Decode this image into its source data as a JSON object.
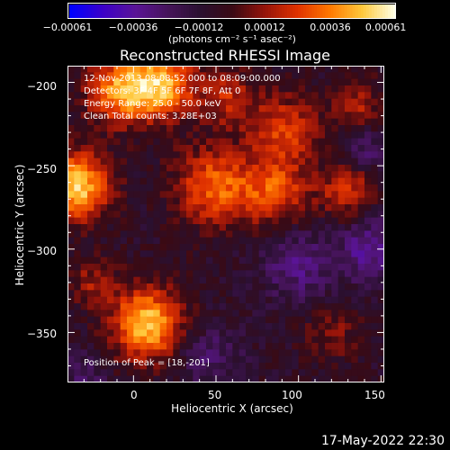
{
  "chart_data": {
    "type": "heatmap",
    "title": "Reconstructed RHESSI Image",
    "xlabel": "Heliocentric X (arcsec)",
    "ylabel": "Heliocentric Y (arcsec)",
    "xlim": [
      -40,
      152
    ],
    "ylim": [
      -380,
      -190
    ],
    "xticks": [
      {
        "value": 0,
        "label": "0"
      },
      {
        "value": 50,
        "label": "50"
      },
      {
        "value": 100,
        "label": "100"
      },
      {
        "value": 150,
        "label": "150"
      }
    ],
    "yticks": [
      {
        "value": -200,
        "label": "−200"
      },
      {
        "value": -250,
        "label": "−250"
      },
      {
        "value": -300,
        "label": "−300"
      },
      {
        "value": -350,
        "label": "−350"
      }
    ],
    "colorbar": {
      "min": -0.00061,
      "max": 0.00061,
      "tick_labels": [
        "−0.00061",
        "−0.00036",
        "−0.00012",
        "0.00012",
        "0.00036",
        "0.00061"
      ],
      "unit_label": "(photons cm⁻² s⁻¹ asec⁻²)",
      "colors": [
        "#0000ff",
        "#3c00c8",
        "#5a1496",
        "#46145a",
        "#2a1030",
        "#3a0a14",
        "#96140a",
        "#e03200",
        "#ff7800",
        "#ffc83c",
        "#ffffe6"
      ]
    },
    "annotations": [
      "12-Nov-2013 08:08:52.000 to 08:09:00.000",
      "Detectors: 3F 4F 5F 6F 7F 8F, Att 0",
      "Energy Range: 25.0 - 50.0 keV",
      "Clean     Total counts: 3.28E+03"
    ],
    "peak_label": "Position of Peak = [18,-201]",
    "sources": [
      {
        "x": -35,
        "y": -262,
        "value": 0.00061,
        "spread": 14
      },
      {
        "x": 8,
        "y": -345,
        "value": 0.00058,
        "spread": 15
      },
      {
        "x": 18,
        "y": -201,
        "value": 0.00052,
        "spread": 14
      },
      {
        "x": -8,
        "y": -205,
        "value": 0.00048,
        "spread": 14
      },
      {
        "x": 48,
        "y": -262,
        "value": 0.0004,
        "spread": 16
      },
      {
        "x": 85,
        "y": -265,
        "value": 0.00036,
        "spread": 15
      },
      {
        "x": 92,
        "y": -228,
        "value": 0.00032,
        "spread": 14
      },
      {
        "x": 130,
        "y": -265,
        "value": 0.0003,
        "spread": 12
      },
      {
        "x": 58,
        "y": -210,
        "value": 0.00026,
        "spread": 12
      },
      {
        "x": 135,
        "y": -215,
        "value": 0.00024,
        "spread": 11
      },
      {
        "x": -25,
        "y": -320,
        "value": 0.0002,
        "spread": 10
      },
      {
        "x": 120,
        "y": -350,
        "value": 0.00016,
        "spread": 12
      },
      {
        "x": 145,
        "y": -300,
        "value": -0.00028,
        "spread": 14
      },
      {
        "x": 100,
        "y": -310,
        "value": -0.00022,
        "spread": 16
      },
      {
        "x": 45,
        "y": -365,
        "value": -0.00018,
        "spread": 14
      },
      {
        "x": 140,
        "y": -240,
        "value": -0.0002,
        "spread": 10
      },
      {
        "x": -30,
        "y": -375,
        "value": -0.00016,
        "spread": 10
      }
    ]
  },
  "footer": {
    "date": "17-May-2022 22:30"
  }
}
